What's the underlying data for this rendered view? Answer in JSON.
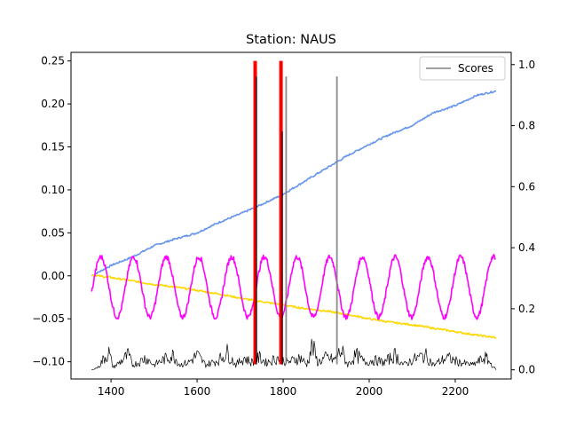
{
  "chart_data": {
    "type": "line",
    "title": "Station: NAUS",
    "xlabel": "",
    "ylabel": "",
    "xlim": [
      1307,
      2330
    ],
    "ylim": [
      -0.12,
      0.26
    ],
    "y2lim": [
      -0.03,
      1.04
    ],
    "x_ticks": [
      1400,
      1600,
      1800,
      2000,
      2200
    ],
    "y_ticks": [
      -0.1,
      -0.05,
      0.0,
      0.05,
      0.1,
      0.15,
      0.2,
      0.25
    ],
    "y_tick_labels": [
      "−0.10",
      "−0.05",
      "0.00",
      "0.05",
      "0.10",
      "0.15",
      "0.20",
      "0.25"
    ],
    "y2_ticks": [
      0.0,
      0.2,
      0.4,
      0.6,
      0.8,
      1.0
    ],
    "y2_tick_labels": [
      "0.0",
      "0.2",
      "0.4",
      "0.6",
      "0.8",
      "1.0"
    ],
    "grid": false,
    "legend": {
      "position": "upper right",
      "entries": [
        "Scores"
      ]
    },
    "series": [
      {
        "color": "#6495ED",
        "axis": "left",
        "points": [
          [
            1355,
            0.0
          ],
          [
            1400,
            0.012
          ],
          [
            1450,
            0.022
          ],
          [
            1500,
            0.035
          ],
          [
            1550,
            0.043
          ],
          [
            1600,
            0.05
          ],
          [
            1650,
            0.062
          ],
          [
            1700,
            0.072
          ],
          [
            1750,
            0.083
          ],
          [
            1800,
            0.095
          ],
          [
            1850,
            0.11
          ],
          [
            1900,
            0.125
          ],
          [
            1950,
            0.14
          ],
          [
            2000,
            0.153
          ],
          [
            2050,
            0.165
          ],
          [
            2100,
            0.175
          ],
          [
            2150,
            0.19
          ],
          [
            2200,
            0.198
          ],
          [
            2250,
            0.21
          ],
          [
            2295,
            0.215
          ]
        ]
      },
      {
        "color": "#FFD700",
        "axis": "left",
        "points": [
          [
            1355,
            0.001
          ],
          [
            1400,
            -0.002
          ],
          [
            1450,
            -0.006
          ],
          [
            1500,
            -0.01
          ],
          [
            1550,
            -0.013
          ],
          [
            1600,
            -0.017
          ],
          [
            1650,
            -0.021
          ],
          [
            1700,
            -0.026
          ],
          [
            1750,
            -0.03
          ],
          [
            1800,
            -0.034
          ],
          [
            1850,
            -0.038
          ],
          [
            1900,
            -0.041
          ],
          [
            1950,
            -0.045
          ],
          [
            2000,
            -0.05
          ],
          [
            2050,
            -0.054
          ],
          [
            2100,
            -0.057
          ],
          [
            2150,
            -0.061
          ],
          [
            2200,
            -0.065
          ],
          [
            2250,
            -0.069
          ],
          [
            2295,
            -0.072
          ]
        ]
      },
      {
        "color": "#FF00FF",
        "axis": "left",
        "model": "sinusoid",
        "period_days": 76,
        "amplitude": 0.035,
        "offset": -0.013,
        "start_x": 1355,
        "end_x": 2295
      },
      {
        "name": "Scores",
        "color": "#000000",
        "axis": "right",
        "points": [
          [
            1355,
            0.0
          ],
          [
            1370,
            0.01
          ],
          [
            1385,
            0.05
          ],
          [
            1395,
            0.07
          ],
          [
            1405,
            0.01
          ],
          [
            1420,
            0.03
          ],
          [
            1440,
            0.06
          ],
          [
            1450,
            0.02
          ],
          [
            1465,
            0.03
          ],
          [
            1480,
            0.05
          ],
          [
            1500,
            0.02
          ],
          [
            1520,
            0.04
          ],
          [
            1545,
            0.06
          ],
          [
            1560,
            0.02
          ],
          [
            1580,
            0.03
          ],
          [
            1600,
            0.06
          ],
          [
            1620,
            0.02
          ],
          [
            1650,
            0.04
          ],
          [
            1670,
            0.07
          ],
          [
            1690,
            0.02
          ],
          [
            1710,
            0.05
          ],
          [
            1725,
            0.03
          ],
          [
            1745,
            0.05
          ],
          [
            1760,
            0.03
          ],
          [
            1790,
            0.05
          ],
          [
            1810,
            0.03
          ],
          [
            1825,
            0.04
          ],
          [
            1840,
            0.05
          ],
          [
            1855,
            0.02
          ],
          [
            1868,
            0.1
          ],
          [
            1880,
            0.03
          ],
          [
            1900,
            0.05
          ],
          [
            1920,
            0.04
          ],
          [
            1935,
            0.08
          ],
          [
            1950,
            0.02
          ],
          [
            1970,
            0.06
          ],
          [
            1990,
            0.03
          ],
          [
            2010,
            0.04
          ],
          [
            2035,
            0.03
          ],
          [
            2060,
            0.06
          ],
          [
            2080,
            0.02
          ],
          [
            2100,
            0.04
          ],
          [
            2130,
            0.06
          ],
          [
            2150,
            0.02
          ],
          [
            2180,
            0.05
          ],
          [
            2210,
            0.03
          ],
          [
            2240,
            0.02
          ],
          [
            2270,
            0.05
          ],
          [
            2285,
            0.02
          ],
          [
            2295,
            0.0
          ]
        ]
      }
    ],
    "event_lines": [
      {
        "x": 1735,
        "color": "#FF0000",
        "width": "thick",
        "from": -0.103,
        "to": 0.25
      },
      {
        "x": 1738,
        "color": "#000000",
        "width": "thin",
        "from": -0.103,
        "to": 0.232
      },
      {
        "x": 1795,
        "color": "#FF0000",
        "width": "thick",
        "from": -0.103,
        "to": 0.25
      },
      {
        "x": 1798,
        "color": "#000000",
        "width": "thin",
        "from": -0.103,
        "to": 0.168
      },
      {
        "x": 1807,
        "color": "#808080",
        "width": "medium",
        "from": -0.103,
        "to": 0.232
      },
      {
        "x": 1925,
        "color": "#808080",
        "width": "medium",
        "from": -0.103,
        "to": 0.232
      }
    ]
  }
}
